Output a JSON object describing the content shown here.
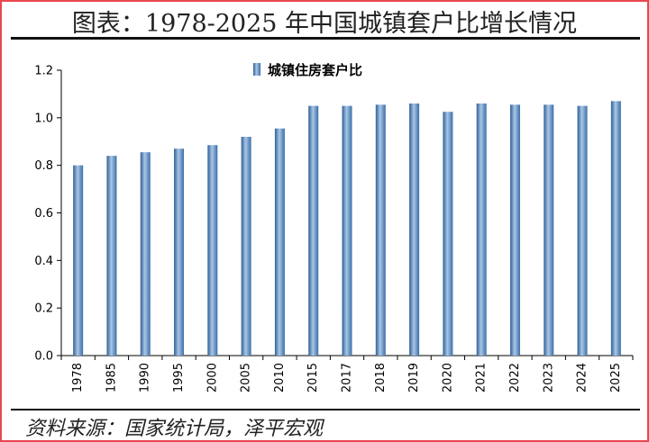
{
  "header": {
    "title": "图表：1978-2025 年中国城镇套户比增长情况"
  },
  "footer": {
    "source": "资料来源：国家统计局，泽平宏观"
  },
  "chart_data": {
    "type": "bar",
    "categories": [
      "1978",
      "1985",
      "1990",
      "1995",
      "2000",
      "2005",
      "2010",
      "2015",
      "2017",
      "2018",
      "2019",
      "2020",
      "2021",
      "2022",
      "2023",
      "2024",
      "2025"
    ],
    "series": [
      {
        "name": "城镇住房套户比",
        "values": [
          0.8,
          0.84,
          0.855,
          0.87,
          0.885,
          0.92,
          0.955,
          1.05,
          1.05,
          1.055,
          1.06,
          1.025,
          1.06,
          1.055,
          1.055,
          1.05,
          1.07
        ],
        "color": "#4f81bd"
      }
    ],
    "yticks": [
      "0.0",
      "0.2",
      "0.4",
      "0.6",
      "0.8",
      "1.0",
      "1.2"
    ],
    "ylim": [
      0,
      1.2
    ],
    "grid": false,
    "legend_position": "top-center"
  }
}
